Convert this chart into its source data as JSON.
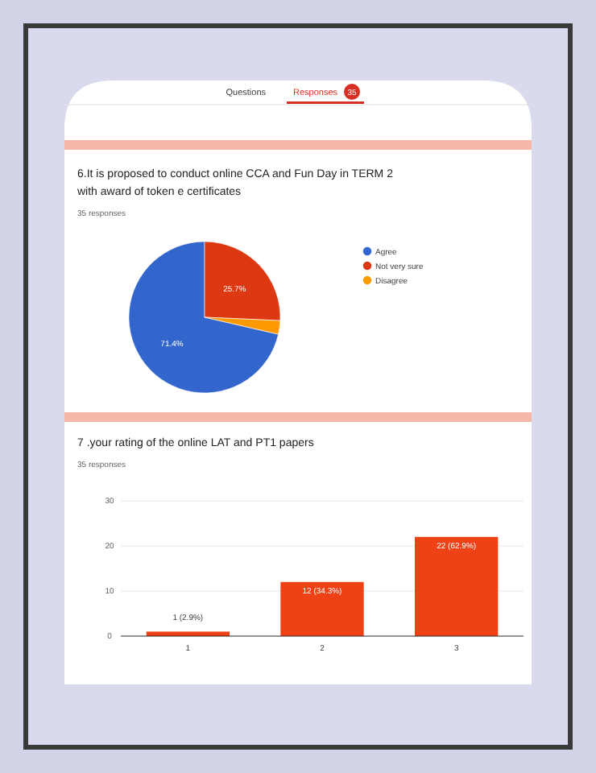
{
  "chart_data": [
    {
      "type": "pie",
      "title": "6.It is proposed to conduct online CCA and Fun Day in TERM 2 with award of token e certificates",
      "subtitle": "35 responses",
      "annotations": [
        "Questions",
        "Responses",
        "35"
      ],
      "categories": [
        "Agree",
        "Not very sure",
        "Disagree"
      ],
      "values": [
        71.4,
        25.7,
        2.9
      ],
      "value_labels": [
        "71.4%",
        "25.7%",
        null
      ],
      "colors": [
        "#3366cc",
        "#dc3912",
        "#ff9900"
      ],
      "legend": "right"
    },
    {
      "type": "bar",
      "title": "7 .your rating of the online LAT and PT1 papers",
      "subtitle": "35 responses",
      "categories": [
        "1",
        "2",
        "3"
      ],
      "values": [
        1,
        12,
        22
      ],
      "value_labels": [
        "1 (2.9%)",
        "12 (34.3%)",
        "22 (62.9%)"
      ],
      "color": "#ee4216",
      "ylim": [
        0,
        30
      ],
      "yticks": [
        0,
        10,
        20,
        30
      ],
      "grid": "y"
    }
  ]
}
